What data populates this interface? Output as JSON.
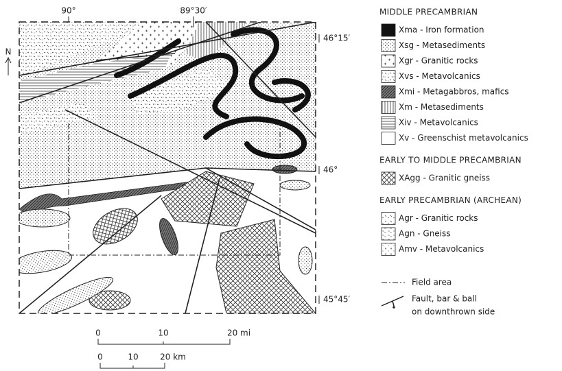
{
  "map": {
    "north": "N",
    "longitude_labels": [
      "90°",
      "89°30′"
    ],
    "latitude_labels": [
      "46°15′",
      "46°",
      "45°45′"
    ],
    "scale_mi": [
      "0",
      "10",
      "20 mi"
    ],
    "scale_km": [
      "0",
      "10",
      "20 km"
    ]
  },
  "legend": {
    "sections": [
      {
        "title": "MIDDLE PRECAMBRIAN",
        "items": [
          "Xma - Iron formation",
          "Xsg - Metasediments",
          "Xgr - Granitic rocks",
          "Xvs - Metavolcanics",
          "Xmi - Metagabbros, mafics",
          "Xm - Metasediments",
          "Xiv - Metavolcanics",
          "Xv - Greenschist metavolcanics"
        ]
      },
      {
        "title": "EARLY TO MIDDLE PRECAMBRIAN",
        "items": [
          "XAgg - Granitic gneiss"
        ]
      },
      {
        "title": "EARLY PRECAMBRIAN (ARCHEAN)",
        "items": [
          "Agr - Granitic rocks",
          "Agn - Gneiss",
          "Amv - Metavolcanics"
        ]
      }
    ],
    "field_area": "Field area",
    "fault": [
      "Fault, bar & ball",
      "on downthrown side"
    ]
  }
}
